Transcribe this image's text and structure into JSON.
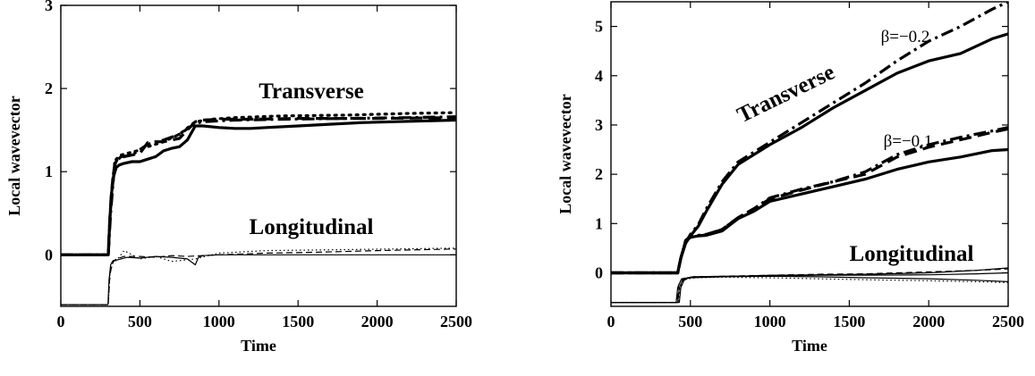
{
  "chart_data": [
    {
      "type": "line",
      "xlabel": "Time",
      "ylabel": "Local wavevector",
      "xlim": [
        0,
        2500
      ],
      "ylim": [
        -0.62,
        3
      ],
      "xticks": [
        "0",
        "500",
        "1000",
        "1500",
        "2000",
        "2500"
      ],
      "yticks": [
        "0",
        "1",
        "2",
        "3"
      ],
      "annotations": [
        "Transverse",
        "Longitudinal"
      ],
      "series": [
        {
          "style": "solid-thick",
          "x": [
            0,
            300,
            308,
            318,
            335,
            350,
            370,
            400,
            450,
            500,
            550,
            600,
            650,
            700,
            750,
            800,
            850,
            900,
            1000,
            1100,
            1200,
            1300,
            1500,
            1700,
            1900,
            2100,
            2300,
            2500
          ],
          "y": [
            0,
            0,
            0.35,
            0.7,
            0.95,
            1.05,
            1.08,
            1.1,
            1.12,
            1.12,
            1.15,
            1.18,
            1.25,
            1.28,
            1.3,
            1.38,
            1.55,
            1.55,
            1.53,
            1.52,
            1.52,
            1.53,
            1.55,
            1.57,
            1.59,
            1.6,
            1.61,
            1.62
          ]
        },
        {
          "style": "dashed-thick",
          "x": [
            0,
            300,
            310,
            325,
            340,
            360,
            400,
            450,
            500,
            550,
            600,
            650,
            700,
            750,
            800,
            850,
            900,
            1000,
            1200,
            1500,
            2000,
            2500
          ],
          "y": [
            0,
            0,
            0.45,
            0.85,
            1.08,
            1.16,
            1.18,
            1.2,
            1.22,
            1.35,
            1.36,
            1.36,
            1.38,
            1.4,
            1.5,
            1.6,
            1.62,
            1.63,
            1.63,
            1.64,
            1.64,
            1.65
          ]
        },
        {
          "style": "dotted-thick",
          "x": [
            0,
            300,
            312,
            330,
            350,
            380,
            420,
            480,
            550,
            650,
            750,
            850,
            950,
            1100,
            1400,
            1800,
            2200,
            2500
          ],
          "y": [
            0,
            0,
            0.5,
            0.95,
            1.15,
            1.2,
            1.22,
            1.25,
            1.3,
            1.36,
            1.45,
            1.6,
            1.63,
            1.65,
            1.67,
            1.68,
            1.7,
            1.71
          ]
        },
        {
          "style": "dashdot-thick",
          "x": [
            0,
            300,
            315,
            340,
            380,
            450,
            550,
            650,
            750,
            850,
            900,
            1100,
            1400,
            1800,
            2200,
            2500
          ],
          "y": [
            0,
            0,
            0.5,
            1.1,
            1.18,
            1.2,
            1.33,
            1.38,
            1.45,
            1.58,
            1.6,
            1.62,
            1.63,
            1.64,
            1.65,
            1.66
          ]
        },
        {
          "style": "solid-thin",
          "x": [
            0,
            298,
            305,
            315,
            330,
            360,
            420,
            500,
            600,
            700,
            800,
            850,
            870,
            900,
            1000,
            1200,
            1500,
            2000,
            2500
          ],
          "y": [
            -0.6,
            -0.6,
            -0.3,
            -0.12,
            -0.07,
            -0.06,
            -0.03,
            -0.04,
            -0.02,
            -0.03,
            -0.05,
            -0.12,
            -0.03,
            -0.01,
            0,
            0,
            0,
            0,
            0
          ]
        },
        {
          "style": "dashed-thin",
          "x": [
            0,
            300,
            310,
            325,
            350,
            400,
            500,
            600,
            700,
            800,
            1000,
            1300,
            1600,
            2000,
            2500
          ],
          "y": [
            -0.6,
            -0.6,
            -0.25,
            -0.1,
            -0.05,
            -0.02,
            -0.02,
            -0.03,
            -0.01,
            -0.02,
            0,
            0.02,
            0.03,
            0.05,
            0.07
          ]
        },
        {
          "style": "dotted-thin",
          "x": [
            0,
            300,
            312,
            330,
            360,
            400,
            450,
            500,
            600,
            700,
            850,
            1000,
            1300,
            1700,
            2100,
            2500
          ],
          "y": [
            -0.6,
            -0.6,
            -0.2,
            -0.1,
            -0.05,
            0.05,
            0.0,
            -0.05,
            -0.02,
            -0.08,
            -0.05,
            0.02,
            0.05,
            0.06,
            0.07,
            0.08
          ]
        }
      ]
    },
    {
      "type": "line",
      "xlabel": "Time",
      "ylabel": "Local wavevector",
      "xlim": [
        0,
        2500
      ],
      "ylim": [
        -0.68,
        5.5
      ],
      "xticks": [
        "0",
        "500",
        "1000",
        "1500",
        "2000",
        "2500"
      ],
      "yticks": [
        "0",
        "1",
        "2",
        "3",
        "4",
        "5"
      ],
      "annotations": [
        "Transverse",
        "Longitudinal",
        "β=−0.2",
        "β=−0.1"
      ],
      "series": [
        {
          "style": "solid-thick",
          "x": [
            0,
            420,
            440,
            470,
            500,
            550,
            600,
            700,
            800,
            1000,
            1200,
            1400,
            1600,
            1800,
            2000,
            2200,
            2400,
            2500
          ],
          "y": [
            0,
            0,
            0.3,
            0.6,
            0.75,
            0.95,
            1.25,
            1.8,
            2.2,
            2.6,
            2.95,
            3.35,
            3.7,
            4.05,
            4.3,
            4.45,
            4.75,
            4.85
          ]
        },
        {
          "style": "dashdot-thick",
          "x": [
            0,
            420,
            440,
            470,
            500,
            550,
            600,
            700,
            800,
            1000,
            1200,
            1400,
            1600,
            1800,
            2000,
            2200,
            2400,
            2500
          ],
          "y": [
            0,
            0,
            0.3,
            0.62,
            0.78,
            0.98,
            1.3,
            1.85,
            2.25,
            2.65,
            3.05,
            3.45,
            3.85,
            4.3,
            4.7,
            5.0,
            5.35,
            5.5
          ]
        },
        {
          "style": "solid-thick",
          "x": [
            0,
            420,
            440,
            470,
            500,
            550,
            600,
            700,
            800,
            900,
            1000,
            1200,
            1400,
            1600,
            1800,
            2000,
            2200,
            2400,
            2500
          ],
          "y": [
            0,
            0,
            0.3,
            0.65,
            0.72,
            0.75,
            0.76,
            0.85,
            1.1,
            1.25,
            1.45,
            1.6,
            1.75,
            1.9,
            2.1,
            2.25,
            2.35,
            2.48,
            2.5
          ]
        },
        {
          "style": "dashed-thick",
          "x": [
            0,
            420,
            440,
            470,
            500,
            550,
            600,
            700,
            800,
            900,
            1000,
            1200,
            1400,
            1600,
            1800,
            2000,
            2200,
            2400,
            2500
          ],
          "y": [
            0,
            0,
            0.3,
            0.65,
            0.72,
            0.75,
            0.77,
            0.88,
            1.12,
            1.3,
            1.5,
            1.68,
            1.85,
            2.0,
            2.35,
            2.55,
            2.7,
            2.85,
            2.92
          ]
        },
        {
          "style": "dashdot-thick",
          "x": [
            0,
            420,
            440,
            470,
            500,
            550,
            600,
            700,
            800,
            900,
            1000,
            1200,
            1400,
            1600,
            1800,
            2000,
            2200,
            2400,
            2500
          ],
          "y": [
            0,
            0,
            0.3,
            0.66,
            0.73,
            0.76,
            0.78,
            0.88,
            1.12,
            1.3,
            1.52,
            1.7,
            1.85,
            2.05,
            2.4,
            2.6,
            2.75,
            2.88,
            2.95
          ]
        },
        {
          "style": "solid-thin",
          "x": [
            0,
            410,
            420,
            440,
            470,
            500,
            700,
            1000,
            1300,
            1600,
            2000,
            2300,
            2500
          ],
          "y": [
            -0.6,
            -0.6,
            -0.3,
            -0.15,
            -0.12,
            -0.1,
            -0.08,
            -0.05,
            -0.04,
            -0.03,
            0.0,
            0.05,
            0.1
          ]
        },
        {
          "style": "solid-thin",
          "x": [
            0,
            420,
            430,
            450,
            480,
            520,
            700,
            1000,
            1300,
            1600,
            2000,
            2300,
            2500
          ],
          "y": [
            -0.6,
            -0.6,
            -0.3,
            -0.15,
            -0.1,
            -0.08,
            -0.07,
            -0.06,
            -0.05,
            -0.05,
            -0.04,
            -0.02,
            0.0
          ]
        },
        {
          "style": "solid-thin",
          "x": [
            0,
            430,
            440,
            460,
            490,
            540,
            700,
            1000,
            1300,
            1600,
            2000,
            2300,
            2500
          ],
          "y": [
            -0.6,
            -0.6,
            -0.3,
            -0.15,
            -0.1,
            -0.09,
            -0.08,
            -0.07,
            -0.08,
            -0.1,
            -0.12,
            -0.15,
            -0.18
          ]
        },
        {
          "style": "dashed-thin",
          "x": [
            0,
            415,
            425,
            445,
            480,
            520,
            700,
            1000,
            1300,
            1600,
            2000,
            2300,
            2500
          ],
          "y": [
            -0.6,
            -0.6,
            -0.25,
            -0.12,
            -0.1,
            -0.08,
            -0.07,
            -0.05,
            -0.03,
            -0.02,
            0.02,
            0.05,
            0.08
          ]
        },
        {
          "style": "dotted-thin",
          "x": [
            0,
            425,
            435,
            455,
            490,
            530,
            700,
            1000,
            1300,
            1600,
            2000,
            2300,
            2500
          ],
          "y": [
            -0.6,
            -0.6,
            -0.28,
            -0.15,
            -0.12,
            -0.1,
            -0.09,
            -0.1,
            -0.12,
            -0.14,
            -0.16,
            -0.18,
            -0.2
          ]
        }
      ]
    }
  ]
}
